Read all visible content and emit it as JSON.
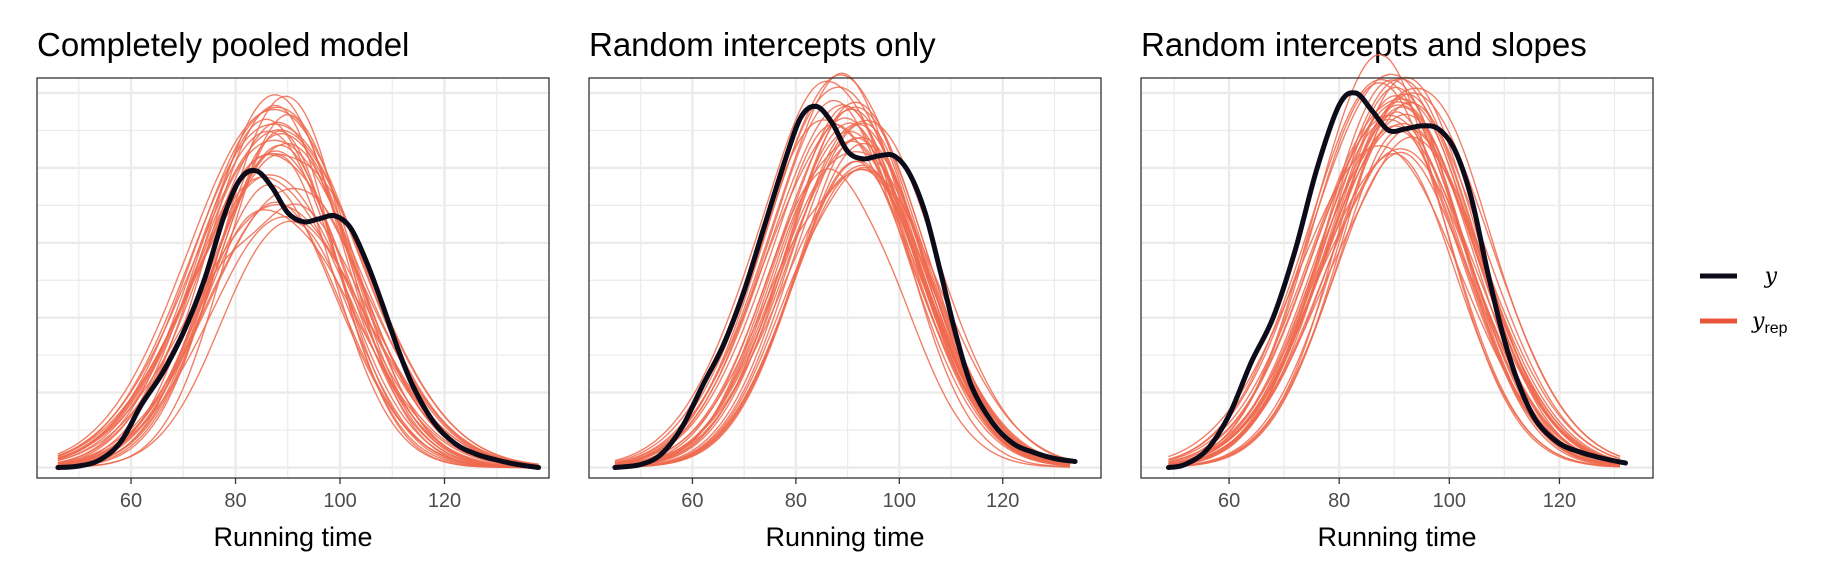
{
  "chart_data": [
    {
      "type": "line",
      "title": "Completely pooled model",
      "xlabel": "Running time",
      "ylabel": "",
      "xlim": [
        42,
        140
      ],
      "ylim": [
        -0.0007,
        0.026
      ],
      "xticks": [
        60,
        80,
        100,
        120
      ],
      "tick_labels": [
        "60",
        "80",
        "100",
        "120"
      ],
      "grid": true,
      "observed": {
        "name": "y",
        "x": [
          46,
          50,
          54,
          58,
          62,
          66,
          70,
          74,
          78,
          81,
          84,
          87,
          90,
          93,
          96,
          99,
          102,
          105,
          108,
          111,
          114,
          118,
          122,
          126,
          130,
          134,
          138
        ],
        "y": [
          0.0,
          0.0001,
          0.0005,
          0.0017,
          0.0042,
          0.0063,
          0.009,
          0.0125,
          0.017,
          0.0193,
          0.0198,
          0.0187,
          0.017,
          0.0164,
          0.0166,
          0.0168,
          0.016,
          0.0138,
          0.011,
          0.008,
          0.0054,
          0.003,
          0.0016,
          0.0009,
          0.0005,
          0.0002,
          0.0
        ]
      },
      "replicated": {
        "name": "y_rep",
        "count": 30,
        "mean": 88,
        "sd_range": [
          11,
          16.5
        ],
        "peak_range": [
          0.0155,
          0.0255
        ]
      }
    },
    {
      "type": "line",
      "title": "Random intercepts only",
      "xlabel": "Running time",
      "ylabel": "",
      "xlim": [
        40,
        139
      ],
      "ylim": [
        -0.0007,
        0.026
      ],
      "xticks": [
        60,
        80,
        100,
        120
      ],
      "tick_labels": [
        "60",
        "80",
        "100",
        "120"
      ],
      "grid": true,
      "observed": {
        "name": "y",
        "x": [
          45,
          50,
          54,
          58,
          62,
          66,
          70,
          74,
          78,
          81,
          84,
          87,
          90,
          93,
          96,
          99,
          102,
          105,
          108,
          111,
          114,
          118,
          122,
          126,
          130,
          134
        ],
        "y": [
          0.0,
          0.0002,
          0.0009,
          0.0027,
          0.0055,
          0.0082,
          0.0118,
          0.0162,
          0.0206,
          0.0234,
          0.0241,
          0.023,
          0.0211,
          0.0206,
          0.0208,
          0.0208,
          0.0196,
          0.017,
          0.013,
          0.0088,
          0.0054,
          0.003,
          0.0016,
          0.001,
          0.0006,
          0.0004
        ]
      },
      "replicated": {
        "name": "y_rep",
        "count": 30,
        "mean": 90,
        "sd_range": [
          12,
          15
        ],
        "peak_range": [
          0.02,
          0.0262
        ]
      }
    },
    {
      "type": "line",
      "title": "Random intercepts and slopes",
      "xlabel": "Running time",
      "ylabel": "",
      "xlim": [
        44,
        137
      ],
      "ylim": [
        -0.0007,
        0.026
      ],
      "xticks": [
        60,
        80,
        100,
        120
      ],
      "tick_labels": [
        "60",
        "80",
        "100",
        "120"
      ],
      "grid": true,
      "observed": {
        "name": "y",
        "x": [
          49,
          52,
          56,
          60,
          64,
          68,
          72,
          76,
          80,
          83,
          86,
          89,
          92,
          95,
          98,
          101,
          104,
          107,
          110,
          113,
          116,
          120,
          124,
          128,
          132
        ],
        "y": [
          0.0,
          0.0002,
          0.0012,
          0.0035,
          0.007,
          0.01,
          0.0145,
          0.02,
          0.0242,
          0.025,
          0.0238,
          0.0225,
          0.0226,
          0.0228,
          0.0226,
          0.0212,
          0.018,
          0.013,
          0.0085,
          0.0052,
          0.003,
          0.0016,
          0.001,
          0.0006,
          0.0003
        ]
      },
      "replicated": {
        "name": "y_rep",
        "count": 30,
        "mean": 90,
        "sd_range": [
          12,
          15
        ],
        "peak_range": [
          0.021,
          0.0265
        ]
      }
    }
  ],
  "legend": {
    "position": "right",
    "items": [
      {
        "label": "y",
        "subscript": "",
        "color": "#0b0b1a"
      },
      {
        "label": "y",
        "subscript": "rep",
        "color": "#e8563a"
      }
    ]
  },
  "colors": {
    "observed": "#0b0b1a",
    "replicated": "#ef6a4f",
    "grid": "#ebebeb",
    "panel_border": "#333333",
    "tick_label": "#4d4d4d"
  }
}
